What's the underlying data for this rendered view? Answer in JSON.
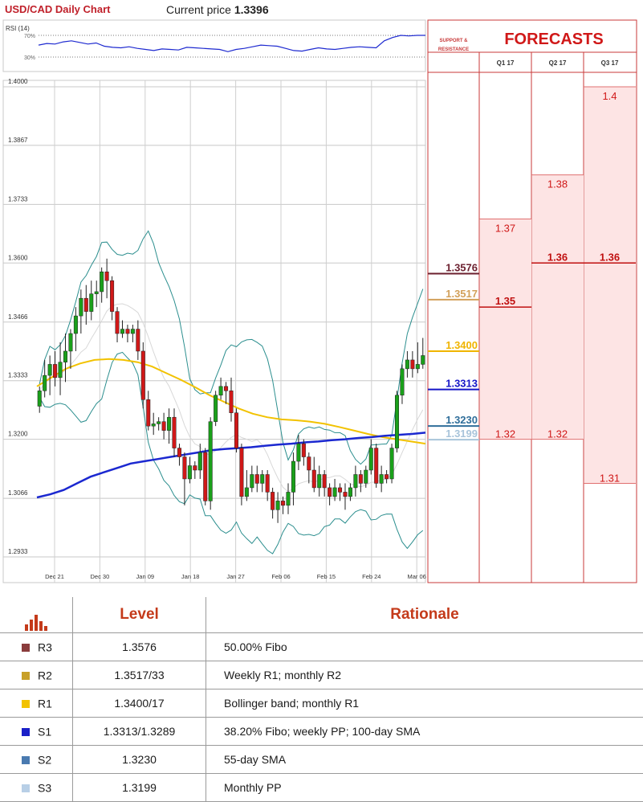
{
  "header": {
    "title": "USD/CAD Daily Chart",
    "current_price_label": "Current price",
    "current_price_value": "1.3396"
  },
  "rsi_panel": {
    "label": "RSI (14)",
    "levels": [
      "70%",
      "30%"
    ]
  },
  "forecasts_panel": {
    "support_label_line1": "SUPPORT &",
    "support_label_line2": "RESISTANCE",
    "title": "FORECASTS",
    "quarters": [
      "Q1 17",
      "Q2 17",
      "Q3 17"
    ]
  },
  "table": {
    "headers": {
      "level": "Level",
      "rationale": "Rationale"
    },
    "rows": [
      {
        "name": "R3",
        "level": "1.3576",
        "rationale": "50.00% Fibo",
        "color": "#8a3c3c"
      },
      {
        "name": "R2",
        "level": "1.3517/33",
        "rationale": "Weekly R1; monthly R2",
        "color": "#c8a028"
      },
      {
        "name": "R1",
        "level": "1.3400/17",
        "rationale": "Bollinger band; monthly R1",
        "color": "#f2c200"
      },
      {
        "name": "S1",
        "level": "1.3313/1.3289",
        "rationale": "38.20% Fibo; weekly PP; 100-day SMA",
        "color": "#1a20c8"
      },
      {
        "name": "S2",
        "level": "1.3230",
        "rationale": "55-day SMA",
        "color": "#4a7ab0"
      },
      {
        "name": "S3",
        "level": "1.3199",
        "rationale": "Monthly PP",
        "color": "#b8cfe6"
      }
    ]
  },
  "chart_data": {
    "type": "candlestick",
    "ylim": [
      1.2933,
      1.4
    ],
    "y_ticks": [
      "1.4000",
      "1.3867",
      "1.3733",
      "1.3600",
      "1.3466",
      "1.3333",
      "1.3200",
      "1.3066",
      "1.2933"
    ],
    "x_ticks": [
      "Dec 21",
      "Dec 30",
      "Jan 09",
      "Jan 18",
      "Jan 27",
      "Feb 06",
      "Feb 15",
      "Feb 24",
      "Mar 06"
    ],
    "candles": [
      [
        1.3275,
        1.331,
        1.326,
        1.332
      ],
      [
        1.331,
        1.3345,
        1.3295,
        1.338
      ],
      [
        1.3345,
        1.337,
        1.33,
        1.339
      ],
      [
        1.337,
        1.334,
        1.332,
        1.34
      ],
      [
        1.334,
        1.3375,
        1.33,
        1.342
      ],
      [
        1.3375,
        1.34,
        1.333,
        1.344
      ],
      [
        1.34,
        1.344,
        1.336,
        1.345
      ],
      [
        1.344,
        1.348,
        1.34,
        1.35
      ],
      [
        1.348,
        1.352,
        1.344,
        1.354
      ],
      [
        1.352,
        1.349,
        1.346,
        1.355
      ],
      [
        1.349,
        1.353,
        1.347,
        1.356
      ],
      [
        1.353,
        1.3535,
        1.35,
        1.356
      ],
      [
        1.3535,
        1.358,
        1.351,
        1.359
      ],
      [
        1.358,
        1.356,
        1.352,
        1.361
      ],
      [
        1.356,
        1.349,
        1.347,
        1.357
      ],
      [
        1.349,
        1.344,
        1.342,
        1.35
      ],
      [
        1.344,
        1.345,
        1.343,
        1.347
      ],
      [
        1.345,
        1.344,
        1.342,
        1.346
      ],
      [
        1.344,
        1.345,
        1.342,
        1.346
      ],
      [
        1.345,
        1.34,
        1.338,
        1.347
      ],
      [
        1.34,
        1.329,
        1.327,
        1.342
      ],
      [
        1.329,
        1.323,
        1.322,
        1.331
      ],
      [
        1.323,
        1.3235,
        1.321,
        1.326
      ],
      [
        1.3235,
        1.324,
        1.322,
        1.325
      ],
      [
        1.324,
        1.322,
        1.32,
        1.326
      ],
      [
        1.322,
        1.325,
        1.319,
        1.327
      ],
      [
        1.325,
        1.318,
        1.316,
        1.327
      ],
      [
        1.318,
        1.316,
        1.314,
        1.319
      ],
      [
        1.316,
        1.311,
        1.305,
        1.317
      ],
      [
        1.311,
        1.314,
        1.31,
        1.316
      ],
      [
        1.314,
        1.313,
        1.311,
        1.315
      ],
      [
        1.313,
        1.317,
        1.311,
        1.319
      ],
      [
        1.317,
        1.306,
        1.305,
        1.318
      ],
      [
        1.306,
        1.324,
        1.304,
        1.325
      ],
      [
        1.324,
        1.33,
        1.323,
        1.331
      ],
      [
        1.33,
        1.332,
        1.329,
        1.334
      ],
      [
        1.332,
        1.331,
        1.328,
        1.333
      ],
      [
        1.331,
        1.326,
        1.324,
        1.334
      ],
      [
        1.326,
        1.318,
        1.317,
        1.327
      ],
      [
        1.318,
        1.307,
        1.305,
        1.319
      ],
      [
        1.307,
        1.309,
        1.306,
        1.313
      ],
      [
        1.309,
        1.312,
        1.308,
        1.314
      ],
      [
        1.312,
        1.31,
        1.308,
        1.314
      ],
      [
        1.31,
        1.312,
        1.308,
        1.313
      ],
      [
        1.312,
        1.308,
        1.306,
        1.313
      ],
      [
        1.308,
        1.304,
        1.302,
        1.309
      ],
      [
        1.304,
        1.306,
        1.301,
        1.308
      ],
      [
        1.306,
        1.305,
        1.303,
        1.307
      ],
      [
        1.305,
        1.308,
        1.303,
        1.31
      ],
      [
        1.308,
        1.315,
        1.305,
        1.317
      ],
      [
        1.315,
        1.319,
        1.313,
        1.321
      ],
      [
        1.319,
        1.316,
        1.314,
        1.32
      ],
      [
        1.316,
        1.313,
        1.31,
        1.317
      ],
      [
        1.313,
        1.309,
        1.308,
        1.316
      ],
      [
        1.309,
        1.312,
        1.307,
        1.314
      ],
      [
        1.312,
        1.309,
        1.307,
        1.313
      ],
      [
        1.309,
        1.307,
        1.305,
        1.31
      ],
      [
        1.307,
        1.309,
        1.306,
        1.311
      ],
      [
        1.309,
        1.308,
        1.306,
        1.31
      ],
      [
        1.308,
        1.307,
        1.304,
        1.31
      ],
      [
        1.307,
        1.309,
        1.306,
        1.31
      ],
      [
        1.309,
        1.312,
        1.307,
        1.314
      ],
      [
        1.312,
        1.31,
        1.308,
        1.313
      ],
      [
        1.31,
        1.313,
        1.309,
        1.314
      ],
      [
        1.313,
        1.318,
        1.312,
        1.32
      ],
      [
        1.318,
        1.31,
        1.309,
        1.319
      ],
      [
        1.31,
        1.312,
        1.308,
        1.314
      ],
      [
        1.312,
        1.311,
        1.31,
        1.313
      ],
      [
        1.311,
        1.318,
        1.31,
        1.319
      ],
      [
        1.318,
        1.33,
        1.317,
        1.331
      ],
      [
        1.33,
        1.336,
        1.328,
        1.337
      ],
      [
        1.336,
        1.338,
        1.334,
        1.34
      ],
      [
        1.338,
        1.336,
        1.334,
        1.34
      ],
      [
        1.336,
        1.337,
        1.335,
        1.342
      ],
      [
        1.337,
        1.339,
        1.336,
        1.343
      ]
    ],
    "sma_100": [
      1.3068,
      1.3075,
      1.3085,
      1.31,
      1.3115,
      1.3125,
      1.3135,
      1.3145,
      1.315,
      1.3155,
      1.316,
      1.3165,
      1.317,
      1.3175,
      1.3178,
      1.318,
      1.3182,
      1.3185,
      1.3188,
      1.319,
      1.3193,
      1.3195,
      1.3198,
      1.32,
      1.3203,
      1.3205,
      1.3208,
      1.321,
      1.3212,
      1.3215
    ],
    "sma_55": [
      1.332,
      1.334,
      1.336,
      1.3372,
      1.338,
      1.3382,
      1.338,
      1.3375,
      1.3365,
      1.335,
      1.3335,
      1.3318,
      1.33,
      1.3285,
      1.327,
      1.3258,
      1.325,
      1.3245,
      1.3243,
      1.324,
      1.3235,
      1.3228,
      1.322,
      1.3212,
      1.3205,
      1.32,
      1.3195,
      1.319
    ],
    "support_resistance": [
      {
        "value": 1.3576,
        "label": "1.3576",
        "color": "#6b1f2e"
      },
      {
        "value": 1.3517,
        "label": "1.3517",
        "color": "#d2a05a"
      },
      {
        "value": 1.34,
        "label": "1.3400",
        "color": "#f0b400"
      },
      {
        "value": 1.3313,
        "label": "1.3313",
        "color": "#1515c8"
      },
      {
        "value": 1.323,
        "label": "1.3230",
        "color": "#2f6e9a"
      },
      {
        "value": 1.3199,
        "label": "1.3199",
        "color": "#a8c4da"
      }
    ],
    "forecasts": [
      {
        "quarter": "Q1 17",
        "high": 1.37,
        "high_label": "1.37",
        "low": 1.32,
        "low_label": "1.32",
        "mid": 1.35,
        "mid_label": "1.35"
      },
      {
        "quarter": "Q2 17",
        "high": 1.38,
        "high_label": "1.38",
        "low": 1.32,
        "low_label": "1.32",
        "mid": 1.36,
        "mid_label": "1.36"
      },
      {
        "quarter": "Q3 17",
        "high": 1.4,
        "high_label": "1.4",
        "low": 1.31,
        "low_label": "1.31",
        "mid": 1.36,
        "mid_label": "1.36"
      }
    ],
    "colors": {
      "bull": "#1aa01a",
      "bear": "#d01818",
      "bollinger": "#2b8e8e",
      "sma100": "#1b28d0",
      "sma55": "#f2c200",
      "forecast_fill": "#fde4e4",
      "forecast_text": "#d01818"
    }
  }
}
